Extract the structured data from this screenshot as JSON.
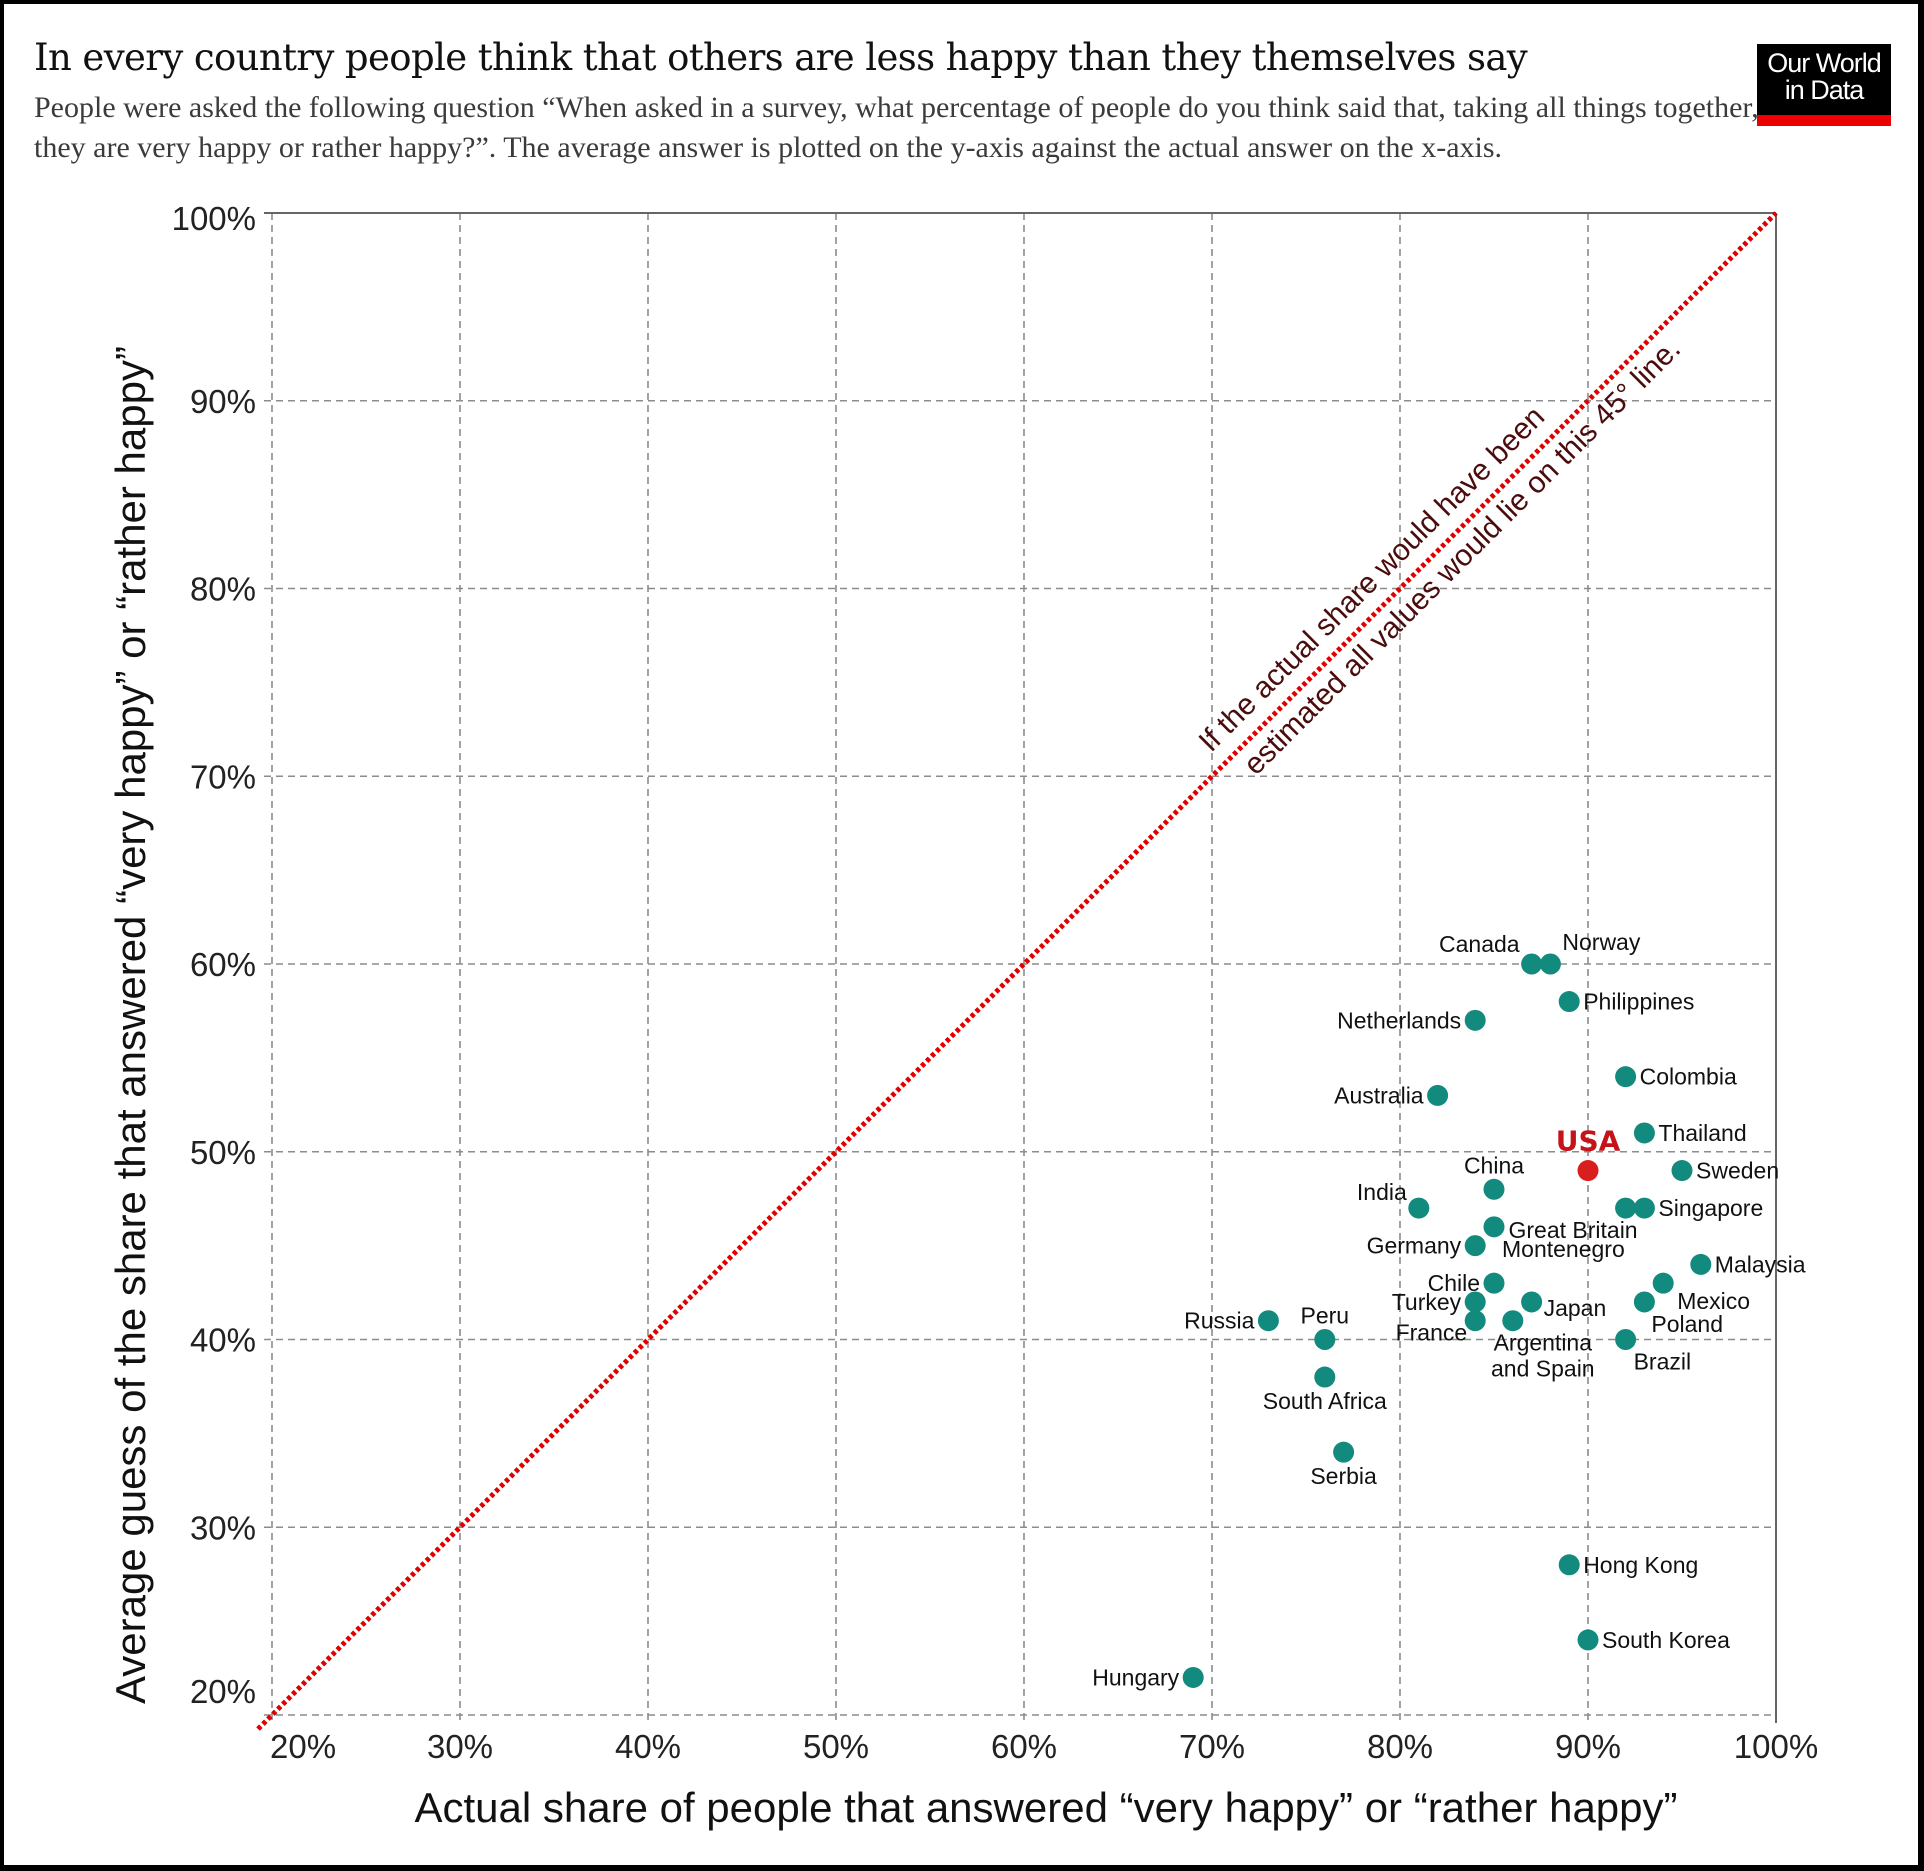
{
  "header": {
    "title": "In every country people think that others are less happy than they themselves say",
    "subtitle": "People were asked the following question “When asked in a survey, what percentage of people do you think said that, taking all things together, they are very happy or rather happy?”. The average answer is plotted on the y-axis against the actual answer on the x-axis.",
    "logo_line1": "Our World",
    "logo_line2": "in Data"
  },
  "colors": {
    "point": "#138a7e",
    "highlight": "#d91e1e",
    "highlight_label": "#c4141a",
    "reference_line": "#e00000",
    "grid": "#8c8c8c",
    "annotation": "#4a0c0c",
    "logo_bar": "#e00000"
  },
  "chart_data": {
    "type": "scatter",
    "title": "In every country people think that others are less happy than they themselves say",
    "xlabel": "Actual share of people that answered “very happy” or “rather happy”",
    "ylabel": "Average guess of the share that answered “very happy” or “rather happy”",
    "xlim": [
      20,
      100
    ],
    "ylim": [
      20,
      100
    ],
    "xticks": [
      "20%",
      "30%",
      "40%",
      "50%",
      "60%",
      "70%",
      "80%",
      "90%",
      "100%"
    ],
    "yticks": [
      "20%",
      "30%",
      "40%",
      "50%",
      "60%",
      "70%",
      "80%",
      "90%",
      "100%"
    ],
    "xtick_values": [
      20,
      30,
      40,
      50,
      60,
      70,
      80,
      90,
      100
    ],
    "ytick_values": [
      20,
      30,
      40,
      50,
      60,
      70,
      80,
      90,
      100
    ],
    "grid": true,
    "reference_line": {
      "type": "diagonal-45",
      "label_line1": "If the actual share would have been",
      "label_line2": "estimated all values would lie on this 45° line."
    },
    "points": [
      {
        "name": "Canada",
        "x": 87,
        "y": 60,
        "label_pos": "above-left"
      },
      {
        "name": "Norway",
        "x": 88,
        "y": 60,
        "label_pos": "above-right"
      },
      {
        "name": "Philippines",
        "x": 89,
        "y": 58,
        "label_pos": "right"
      },
      {
        "name": "Netherlands",
        "x": 84,
        "y": 57,
        "label_pos": "left"
      },
      {
        "name": "Colombia",
        "x": 92,
        "y": 54,
        "label_pos": "right"
      },
      {
        "name": "Australia",
        "x": 82,
        "y": 53,
        "label_pos": "left"
      },
      {
        "name": "Thailand",
        "x": 93,
        "y": 51,
        "label_pos": "right"
      },
      {
        "name": "USA",
        "x": 90,
        "y": 49,
        "label_pos": "above",
        "highlight": true
      },
      {
        "name": "Sweden",
        "x": 95,
        "y": 49,
        "label_pos": "right"
      },
      {
        "name": "China",
        "x": 85,
        "y": 48,
        "label_pos": "above"
      },
      {
        "name": "India",
        "x": 81,
        "y": 47,
        "label_pos": "above-left"
      },
      {
        "name": "Great Britain",
        "x": 92,
        "y": 47,
        "label_pos": "below-left"
      },
      {
        "name": "Singapore",
        "x": 93,
        "y": 47,
        "label_pos": "right"
      },
      {
        "name": "Montenegro",
        "x": 85,
        "y": 46,
        "label_pos": "below-right"
      },
      {
        "name": "Germany",
        "x": 84,
        "y": 45,
        "label_pos": "left"
      },
      {
        "name": "Malaysia",
        "x": 96,
        "y": 44,
        "label_pos": "right"
      },
      {
        "name": "Chile",
        "x": 85,
        "y": 43,
        "label_pos": "left"
      },
      {
        "name": "Mexico",
        "x": 94,
        "y": 43,
        "label_pos": "below-right"
      },
      {
        "name": "Turkey",
        "x": 84,
        "y": 42,
        "label_pos": "left"
      },
      {
        "name": "Japan",
        "x": 87,
        "y": 42,
        "label_pos": "right-low"
      },
      {
        "name": "Poland",
        "x": 93,
        "y": 42,
        "label_pos": "below-right"
      },
      {
        "name": "France",
        "x": 84,
        "y": 41,
        "label_pos": "below-left"
      },
      {
        "name": "Argentina and Spain",
        "x": 86,
        "y": 41,
        "label_pos": "below"
      },
      {
        "name": "Russia",
        "x": 73,
        "y": 41,
        "label_pos": "left"
      },
      {
        "name": "Peru",
        "x": 76,
        "y": 40,
        "label_pos": "above"
      },
      {
        "name": "Brazil",
        "x": 92,
        "y": 40,
        "label_pos": "below-right"
      },
      {
        "name": "South Africa",
        "x": 76,
        "y": 38,
        "label_pos": "below"
      },
      {
        "name": "Serbia",
        "x": 77,
        "y": 34,
        "label_pos": "below"
      },
      {
        "name": "Hong Kong",
        "x": 89,
        "y": 28,
        "label_pos": "right"
      },
      {
        "name": "South Korea",
        "x": 90,
        "y": 24,
        "label_pos": "right"
      },
      {
        "name": "Hungary",
        "x": 69,
        "y": 22,
        "label_pos": "left"
      }
    ]
  }
}
